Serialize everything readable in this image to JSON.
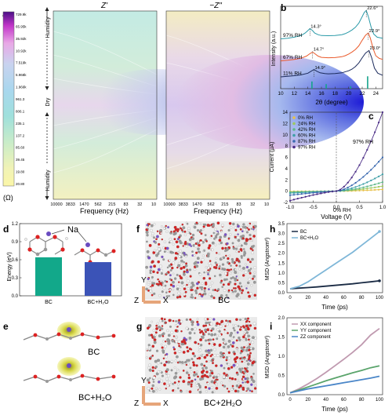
{
  "panels": {
    "a": "a",
    "b": "b",
    "c": "c",
    "d": "d",
    "e": "e",
    "f": "f",
    "g": "g",
    "h": "h",
    "i": "i"
  },
  "panel_a": {
    "title_left": "Z'",
    "title_right": "−Z\"",
    "colorbar_unit": "(Ω)",
    "colorbar_ticks": [
      "729.9k",
      "65.95k",
      "35.92k",
      "10.92k",
      "7.519k",
      "5.968k",
      "1.966k",
      "961.3",
      "806.1",
      "235.1",
      "137.2",
      "85.60",
      "39.45",
      "19.80",
      "20.80"
    ],
    "side_labels": [
      "Humidity",
      "Dry",
      "Humidity"
    ],
    "x_ticks": [
      "10000",
      "3833",
      "1470",
      "562",
      "215",
      "83",
      "32",
      "10"
    ],
    "xlabel": "Frequency (Hz)"
  },
  "panel_b": {
    "ylabel": "Intensity (a.u.)",
    "xlabel": "2θ (degree)",
    "peak_labels": [
      "14.3°",
      "22.6°",
      "14.7°",
      "22.9°",
      "14.9°",
      "23.0°"
    ]
  },
  "panel_c": {
    "ylabel": "Current (μA)",
    "xlabel": "Voltage (V)",
    "annotations": [
      "97% RH",
      "0% RH"
    ]
  },
  "panel_d": {
    "ylabel": "Energy (eV)",
    "annotation": "Na"
  },
  "panel_e": {
    "labels": [
      "BC",
      "BC+H₂O"
    ]
  },
  "panel_f": {
    "axes": [
      "Y",
      "Z",
      "X"
    ],
    "label": "BC"
  },
  "panel_g": {
    "axes": [
      "Y",
      "Z",
      "X"
    ],
    "label": "BC+2H₂O"
  },
  "panel_h": {
    "ylabel": "MSD (Angstrom²)",
    "xlabel": "Time (ps)"
  },
  "panel_i": {
    "ylabel": "MSD (Angstrom²)",
    "xlabel": "Time (ps)"
  },
  "colors": {
    "rh11": "#1b2a5c",
    "rh67": "#ea5a2b",
    "rh97": "#2a9aa8",
    "ref": "#15a38a",
    "bc": "#12a88a",
    "bch2o": "#3b53b7",
    "msd_bc": "#1a2b44",
    "msd_bch2o": "#7fb7d8",
    "xx": "#c09ab0",
    "yy": "#5aa46b",
    "zz": "#4a86c8"
  },
  "chart_data": [
    {
      "id": "b",
      "type": "line",
      "xlim": [
        10,
        25
      ],
      "x_ticks": [
        10,
        12,
        14,
        16,
        18,
        20,
        22,
        24
      ],
      "series": [
        {
          "name": "97% RH",
          "color": "#2a9aa8",
          "offset": 2.2,
          "x": [
            10,
            11,
            12,
            13,
            13.6,
            14,
            14.3,
            14.7,
            15,
            15.5,
            16,
            17,
            18,
            19,
            19.5,
            20,
            20.5,
            21,
            21.5,
            22,
            22.3,
            22.6,
            22.9,
            23.3,
            23.7,
            24.2,
            25
          ],
          "y": [
            0.22,
            0.25,
            0.3,
            0.38,
            0.5,
            0.62,
            0.72,
            0.62,
            0.5,
            0.42,
            0.38,
            0.37,
            0.38,
            0.42,
            0.47,
            0.55,
            0.65,
            0.78,
            0.98,
            1.3,
            1.5,
            1.6,
            1.3,
            0.8,
            0.45,
            0.3,
            0.25
          ]
        },
        {
          "name": "67% RH",
          "color": "#ea5a2b",
          "offset": 1.2,
          "x": [
            10,
            11,
            12,
            13,
            13.8,
            14.3,
            14.7,
            15.1,
            15.5,
            16,
            17,
            18,
            19,
            19.5,
            20,
            20.5,
            21,
            21.5,
            22,
            22.5,
            22.9,
            23.2,
            23.6,
            24,
            24.5,
            25
          ],
          "y": [
            0.15,
            0.18,
            0.22,
            0.28,
            0.38,
            0.5,
            0.58,
            0.48,
            0.38,
            0.32,
            0.3,
            0.31,
            0.35,
            0.4,
            0.48,
            0.58,
            0.7,
            0.88,
            1.15,
            1.4,
            1.5,
            1.25,
            0.75,
            0.4,
            0.27,
            0.22
          ]
        },
        {
          "name": "11% RH",
          "color": "#1b2a5c",
          "offset": 0.45,
          "x": [
            10,
            11,
            12,
            13,
            14,
            14.5,
            14.9,
            15.3,
            15.8,
            16.5,
            17,
            18,
            19,
            20,
            20.5,
            21,
            21.5,
            22,
            22.5,
            23,
            23.4,
            23.8,
            24.3,
            25
          ],
          "y": [
            0.12,
            0.15,
            0.18,
            0.22,
            0.3,
            0.4,
            0.48,
            0.4,
            0.32,
            0.28,
            0.27,
            0.28,
            0.32,
            0.42,
            0.5,
            0.62,
            0.8,
            1.05,
            1.28,
            1.4,
            1.05,
            0.55,
            0.3,
            0.2
          ]
        }
      ],
      "reference_sticks": [
        {
          "x": 14.6,
          "h": 0.35
        },
        {
          "x": 16.7,
          "h": 0.22
        },
        {
          "x": 20.3,
          "h": 0.12
        },
        {
          "x": 22.8,
          "h": 0.6
        }
      ],
      "ylim": [
        0,
        4
      ]
    },
    {
      "id": "c",
      "type": "line",
      "xlim": [
        -1.0,
        1.0
      ],
      "ylim": [
        -2,
        14
      ],
      "x_ticks": [
        "-1.0",
        "-0.5",
        "0.0",
        "0.5",
        "1.0"
      ],
      "y_ticks": [
        -2,
        0,
        2,
        4,
        6,
        8,
        10,
        12,
        14
      ],
      "legend_position": "top-left",
      "series": [
        {
          "name": "0% RH",
          "color": "#e8c14a",
          "k": 0.3
        },
        {
          "name": "24% RH",
          "color": "#9cc860",
          "k": 0.9
        },
        {
          "name": "42% RH",
          "color": "#5fb88a",
          "k": 1.6
        },
        {
          "name": "60% RH",
          "color": "#3fa0a8",
          "k": 3.0
        },
        {
          "name": "87% RH",
          "color": "#3b6ab0",
          "k": 6.0
        },
        {
          "name": "97% RH",
          "color": "#4a2c86",
          "k": 14.0
        }
      ]
    },
    {
      "id": "d",
      "type": "bar",
      "categories": [
        "BC",
        "BC+H₂O"
      ],
      "values": [
        0.64,
        0.56
      ],
      "colors": [
        "#12a88a",
        "#3b53b7"
      ],
      "ylim": [
        0,
        1.2
      ],
      "y_ticks": [
        "0.0",
        "0.3",
        "0.6",
        "0.9",
        "1.2"
      ]
    },
    {
      "id": "h",
      "type": "line",
      "xlim": [
        0,
        100
      ],
      "ylim": [
        0,
        3.5
      ],
      "x_ticks": [
        0,
        20,
        40,
        60,
        80,
        100
      ],
      "y_ticks": [
        "0.0",
        "0.5",
        "1.0",
        "1.5",
        "2.0",
        "2.5",
        "3.0",
        "3.5"
      ],
      "legend_position": "top-left",
      "series": [
        {
          "name": "BC",
          "color": "#1a2b44",
          "x": [
            0,
            10,
            20,
            30,
            40,
            50,
            60,
            70,
            80,
            90,
            100
          ],
          "y": [
            0.2,
            0.23,
            0.26,
            0.29,
            0.33,
            0.37,
            0.41,
            0.45,
            0.5,
            0.55,
            0.6
          ]
        },
        {
          "name": "BC+H₂O",
          "color": "#7fb7d8",
          "x": [
            0,
            10,
            20,
            30,
            40,
            50,
            60,
            70,
            80,
            90,
            100
          ],
          "y": [
            0.2,
            0.32,
            0.55,
            0.85,
            1.15,
            1.45,
            1.75,
            2.05,
            2.4,
            2.75,
            3.1
          ]
        }
      ]
    },
    {
      "id": "i",
      "type": "line",
      "xlim": [
        0,
        100
      ],
      "ylim": [
        0,
        2.0
      ],
      "x_ticks": [
        0,
        20,
        40,
        60,
        80,
        100
      ],
      "y_ticks": [
        "0.0",
        "0.5",
        "1.0",
        "1.5",
        "2.0"
      ],
      "legend_position": "top-left",
      "series": [
        {
          "name": "XX component",
          "color": "#c09ab0",
          "x": [
            0,
            10,
            20,
            30,
            40,
            50,
            60,
            70,
            80,
            90,
            100
          ],
          "y": [
            0.05,
            0.15,
            0.28,
            0.42,
            0.58,
            0.75,
            0.92,
            1.1,
            1.3,
            1.55,
            1.72
          ]
        },
        {
          "name": "YY component",
          "color": "#5aa46b",
          "x": [
            0,
            10,
            20,
            30,
            40,
            50,
            60,
            70,
            80,
            90,
            100
          ],
          "y": [
            0.05,
            0.12,
            0.2,
            0.28,
            0.36,
            0.43,
            0.5,
            0.57,
            0.63,
            0.7,
            0.75
          ]
        },
        {
          "name": "ZZ component",
          "color": "#4a86c8",
          "x": [
            0,
            10,
            20,
            30,
            40,
            50,
            60,
            70,
            80,
            90,
            100
          ],
          "y": [
            0.05,
            0.1,
            0.15,
            0.19,
            0.23,
            0.27,
            0.31,
            0.35,
            0.39,
            0.43,
            0.48
          ]
        }
      ]
    }
  ]
}
